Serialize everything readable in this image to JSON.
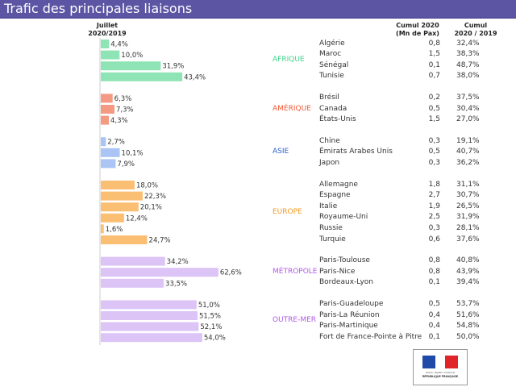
{
  "title": "Trafic des principales liaisons",
  "columns": {
    "bar_header_line1": "Juillet",
    "bar_header_line2": "2020/2019",
    "cumul_header_line1": "Cumul 2020",
    "cumul_header_line2": "(Mn de Pax)",
    "ratio_header_line1": "Cumul",
    "ratio_header_line2": "2020 / 2019"
  },
  "colors": {
    "title_bg": "#5b55a3",
    "AFRIQUE": "#8ee4b4",
    "AMÉRIQUE": "#f59a82",
    "ASIE": "#a9c4f5",
    "EUROPE": "#fbbf74",
    "MÉTROPOLE": "#dcc4f7",
    "OUTRE-MER": "#dcc4f7"
  },
  "label_colors": {
    "AFRIQUE": "#3fd28a",
    "AMÉRIQUE": "#ee5a36",
    "ASIE": "#2b5fd1",
    "EUROPE": "#f49a1e",
    "MÉTROPOLE": "#b05ae8",
    "OUTRE-MER": "#b05ae8"
  },
  "logo": {
    "motto": "Liberté • Égalité • Fraternité",
    "name": "RÉPUBLIQUE FRANÇAISE"
  },
  "chart_data": {
    "type": "bar",
    "orientation": "horizontal",
    "title": "Trafic des principales liaisons",
    "xlabel": "Juillet 2020/2019",
    "xlim": [
      0,
      100
    ],
    "unit": "%",
    "groups": [
      {
        "region": "AFRIQUE",
        "rows": [
          {
            "name": "Algérie",
            "juillet": "4,4%",
            "value": 4.4,
            "cumul": "0,8",
            "ratio": "32,4%"
          },
          {
            "name": "Maroc",
            "juillet": "10,0%",
            "value": 10.0,
            "cumul": "1,5",
            "ratio": "38,3%"
          },
          {
            "name": "Sénégal",
            "juillet": "31,9%",
            "value": 31.9,
            "cumul": "0,1",
            "ratio": "48,7%"
          },
          {
            "name": "Tunisie",
            "juillet": "43,4%",
            "value": 43.4,
            "cumul": "0,7",
            "ratio": "38,0%"
          }
        ]
      },
      {
        "region": "AMÉRIQUE",
        "rows": [
          {
            "name": "Brésil",
            "juillet": "6,3%",
            "value": 6.3,
            "cumul": "0,2",
            "ratio": "37,5%"
          },
          {
            "name": "Canada",
            "juillet": "7,3%",
            "value": 7.3,
            "cumul": "0,5",
            "ratio": "30,4%"
          },
          {
            "name": "États-Unis",
            "juillet": "4,3%",
            "value": 4.3,
            "cumul": "1,5",
            "ratio": "27,0%"
          }
        ]
      },
      {
        "region": "ASIE",
        "rows": [
          {
            "name": "Chine",
            "juillet": "2,7%",
            "value": 2.7,
            "cumul": "0,3",
            "ratio": "19,1%"
          },
          {
            "name": "Émirats Arabes Unis",
            "juillet": "10,1%",
            "value": 10.1,
            "cumul": "0,5",
            "ratio": "40,7%"
          },
          {
            "name": "Japon",
            "juillet": "7,9%",
            "value": 7.9,
            "cumul": "0,3",
            "ratio": "36,2%"
          }
        ]
      },
      {
        "region": "EUROPE",
        "rows": [
          {
            "name": "Allemagne",
            "juillet": "18,0%",
            "value": 18.0,
            "cumul": "1,8",
            "ratio": "31,1%"
          },
          {
            "name": "Espagne",
            "juillet": "22,3%",
            "value": 22.3,
            "cumul": "2,7",
            "ratio": "30,7%"
          },
          {
            "name": "Italie",
            "juillet": "20,1%",
            "value": 20.1,
            "cumul": "1,9",
            "ratio": "26,5%"
          },
          {
            "name": "Royaume-Uni",
            "juillet": "12,4%",
            "value": 12.4,
            "cumul": "2,5",
            "ratio": "31,9%"
          },
          {
            "name": "Russie",
            "juillet": "1,6%",
            "value": 1.6,
            "cumul": "0,3",
            "ratio": "28,1%"
          },
          {
            "name": "Turquie",
            "juillet": "24,7%",
            "value": 24.7,
            "cumul": "0,6",
            "ratio": "37,6%"
          }
        ]
      },
      {
        "region": "MÉTROPOLE",
        "rows": [
          {
            "name": "Paris-Toulouse",
            "juillet": "34,2%",
            "value": 34.2,
            "cumul": "0,8",
            "ratio": "40,8%"
          },
          {
            "name": "Paris-Nice",
            "juillet": "62,6%",
            "value": 62.6,
            "cumul": "0,8",
            "ratio": "43,9%"
          },
          {
            "name": "Bordeaux-Lyon",
            "juillet": "33,5%",
            "value": 33.5,
            "cumul": "0,1",
            "ratio": "39,4%"
          }
        ]
      },
      {
        "region": "OUTRE-MER",
        "rows": [
          {
            "name": "Paris-Guadeloupe",
            "juillet": "51,0%",
            "value": 51.0,
            "cumul": "0,5",
            "ratio": "53,7%"
          },
          {
            "name": "Paris-La Réunion",
            "juillet": "51,5%",
            "value": 51.5,
            "cumul": "0,4",
            "ratio": "51,6%"
          },
          {
            "name": "Paris-Martinique",
            "juillet": "52,1%",
            "value": 52.1,
            "cumul": "0,4",
            "ratio": "54,8%"
          },
          {
            "name": "Fort de France-Pointe à Pitre",
            "juillet": "54,0%",
            "value": 54.0,
            "cumul": "0,1",
            "ratio": "50,0%"
          }
        ]
      }
    ]
  }
}
